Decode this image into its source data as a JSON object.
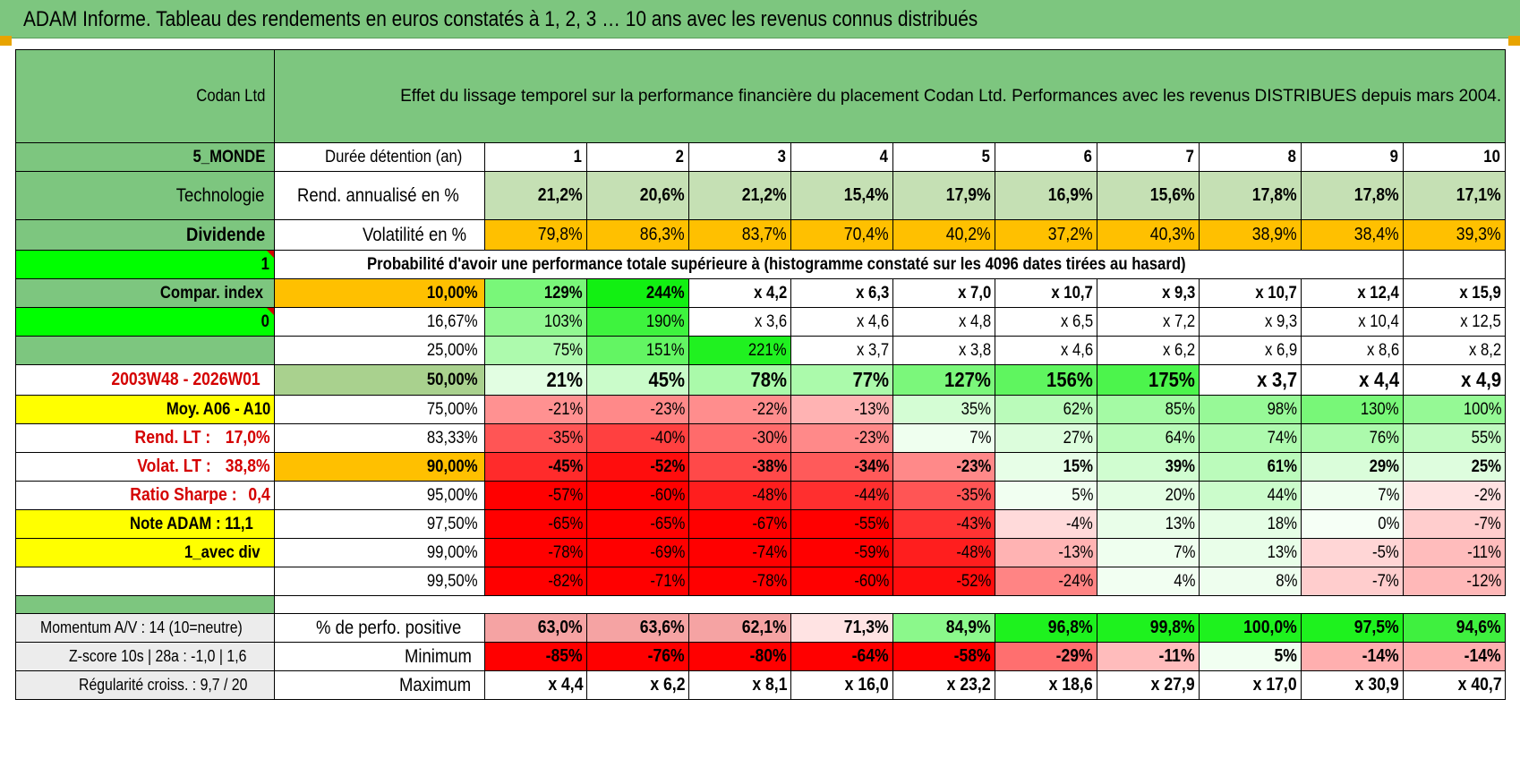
{
  "header": {
    "title": "ADAM Informe. Tableau des rendements en euros constatés à 1, 2, 3 … 10 ans avec les revenus connus distribués"
  },
  "table": {
    "company": "Codan Ltd",
    "description": "Effet du lissage temporel sur la performance financière du placement Codan Ltd. Performances avec les revenus DISTRIBUES depuis mars 2004.",
    "sidebar": {
      "region": "5_MONDE",
      "sector": "Technologie",
      "income": "Dividende",
      "flag1": "1",
      "compar_index": "Compar. index",
      "flag2": "0",
      "period": "2003W48 - 2026W01",
      "moy": "Moy. A06 - A10",
      "rend_lt_label": "Rend. LT :",
      "rend_lt_value": "17,0%",
      "volat_lt_label": "Volat. LT :",
      "volat_lt_value": "38,8%",
      "sharpe_label": "Ratio Sharpe :",
      "sharpe_value": "0,4",
      "note": "Note ADAM : 11,1",
      "mode": "1_avec div",
      "momentum": "Momentum A/V : 14 (10=neutre)",
      "zscore": "Z-score 10s | 28a : -1,0 | 1,6",
      "regularite": "Régularité croiss. : 9,7 / 20"
    },
    "row_labels": {
      "duration": "Durée détention (an)",
      "rend": "Rend. annualisé en %",
      "vol": "Volatilité en %",
      "prob_title": "Probabilité d'avoir une performance totale supérieure à (histogramme constaté sur les 4096 dates tirées au hasard)",
      "positive": "% de perfo. positive",
      "minimum": "Minimum",
      "maximum": "Maximum"
    },
    "years": [
      "1",
      "2",
      "3",
      "4",
      "5",
      "6",
      "7",
      "8",
      "9",
      "10"
    ],
    "rend": [
      "21,2%",
      "20,6%",
      "21,2%",
      "15,4%",
      "17,9%",
      "16,9%",
      "15,6%",
      "17,8%",
      "17,8%",
      "17,1%"
    ],
    "vol": [
      "79,8%",
      "86,3%",
      "83,7%",
      "70,4%",
      "40,2%",
      "37,2%",
      "40,3%",
      "38,9%",
      "38,4%",
      "39,3%"
    ],
    "prob_rows": [
      {
        "pct": "10,00%",
        "values": [
          "129%",
          "244%",
          "x 4,2",
          "x 6,3",
          "x 7,0",
          "x 10,7",
          "x 9,3",
          "x 10,7",
          "x 12,4",
          "x 15,9"
        ]
      },
      {
        "pct": "16,67%",
        "values": [
          "103%",
          "190%",
          "x 3,6",
          "x 4,6",
          "x 4,8",
          "x 6,5",
          "x 7,2",
          "x 9,3",
          "x 10,4",
          "x 12,5"
        ]
      },
      {
        "pct": "25,00%",
        "values": [
          "75%",
          "151%",
          "221%",
          "x 3,7",
          "x 3,8",
          "x 4,6",
          "x 6,2",
          "x 6,9",
          "x 8,6",
          "x 8,2"
        ]
      },
      {
        "pct": "50,00%",
        "values": [
          "21%",
          "45%",
          "78%",
          "77%",
          "127%",
          "156%",
          "175%",
          "x 3,7",
          "x 4,4",
          "x 4,9"
        ]
      },
      {
        "pct": "75,00%",
        "values": [
          "-21%",
          "-23%",
          "-22%",
          "-13%",
          "35%",
          "62%",
          "85%",
          "98%",
          "130%",
          "100%"
        ]
      },
      {
        "pct": "83,33%",
        "values": [
          "-35%",
          "-40%",
          "-30%",
          "-23%",
          "7%",
          "27%",
          "64%",
          "74%",
          "76%",
          "55%"
        ]
      },
      {
        "pct": "90,00%",
        "values": [
          "-45%",
          "-52%",
          "-38%",
          "-34%",
          "-23%",
          "15%",
          "39%",
          "61%",
          "29%",
          "25%"
        ]
      },
      {
        "pct": "95,00%",
        "values": [
          "-57%",
          "-60%",
          "-48%",
          "-44%",
          "-35%",
          "5%",
          "20%",
          "44%",
          "7%",
          "-2%"
        ]
      },
      {
        "pct": "97,50%",
        "values": [
          "-65%",
          "-65%",
          "-67%",
          "-55%",
          "-43%",
          "-4%",
          "13%",
          "18%",
          "0%",
          "-7%"
        ]
      },
      {
        "pct": "99,00%",
        "values": [
          "-78%",
          "-69%",
          "-74%",
          "-59%",
          "-48%",
          "-13%",
          "7%",
          "13%",
          "-5%",
          "-11%"
        ]
      },
      {
        "pct": "99,50%",
        "values": [
          "-82%",
          "-71%",
          "-78%",
          "-60%",
          "-52%",
          "-24%",
          "4%",
          "8%",
          "-7%",
          "-12%"
        ]
      }
    ],
    "positive": [
      "63,0%",
      "63,6%",
      "62,1%",
      "71,3%",
      "84,9%",
      "96,8%",
      "99,8%",
      "100,0%",
      "97,5%",
      "94,6%"
    ],
    "minimum": [
      "-85%",
      "-76%",
      "-80%",
      "-64%",
      "-58%",
      "-29%",
      "-11%",
      "5%",
      "-14%",
      "-14%"
    ],
    "maximum": [
      "x 4,4",
      "x 6,2",
      "x 8,1",
      "x 16,0",
      "x 23,2",
      "x 18,6",
      "x 27,9",
      "x 17,0",
      "x 30,9",
      "x 40,7"
    ]
  },
  "colors": {
    "header_green": "#7dc67f",
    "table_green": "#7dc67f",
    "rend_green": "#c5e0b4",
    "vol_orange": "#ffc000",
    "bright_green": "#00ff00",
    "yellow": "#ffff00",
    "red_text": "#d40000",
    "corner_orange": "#e8a400"
  }
}
